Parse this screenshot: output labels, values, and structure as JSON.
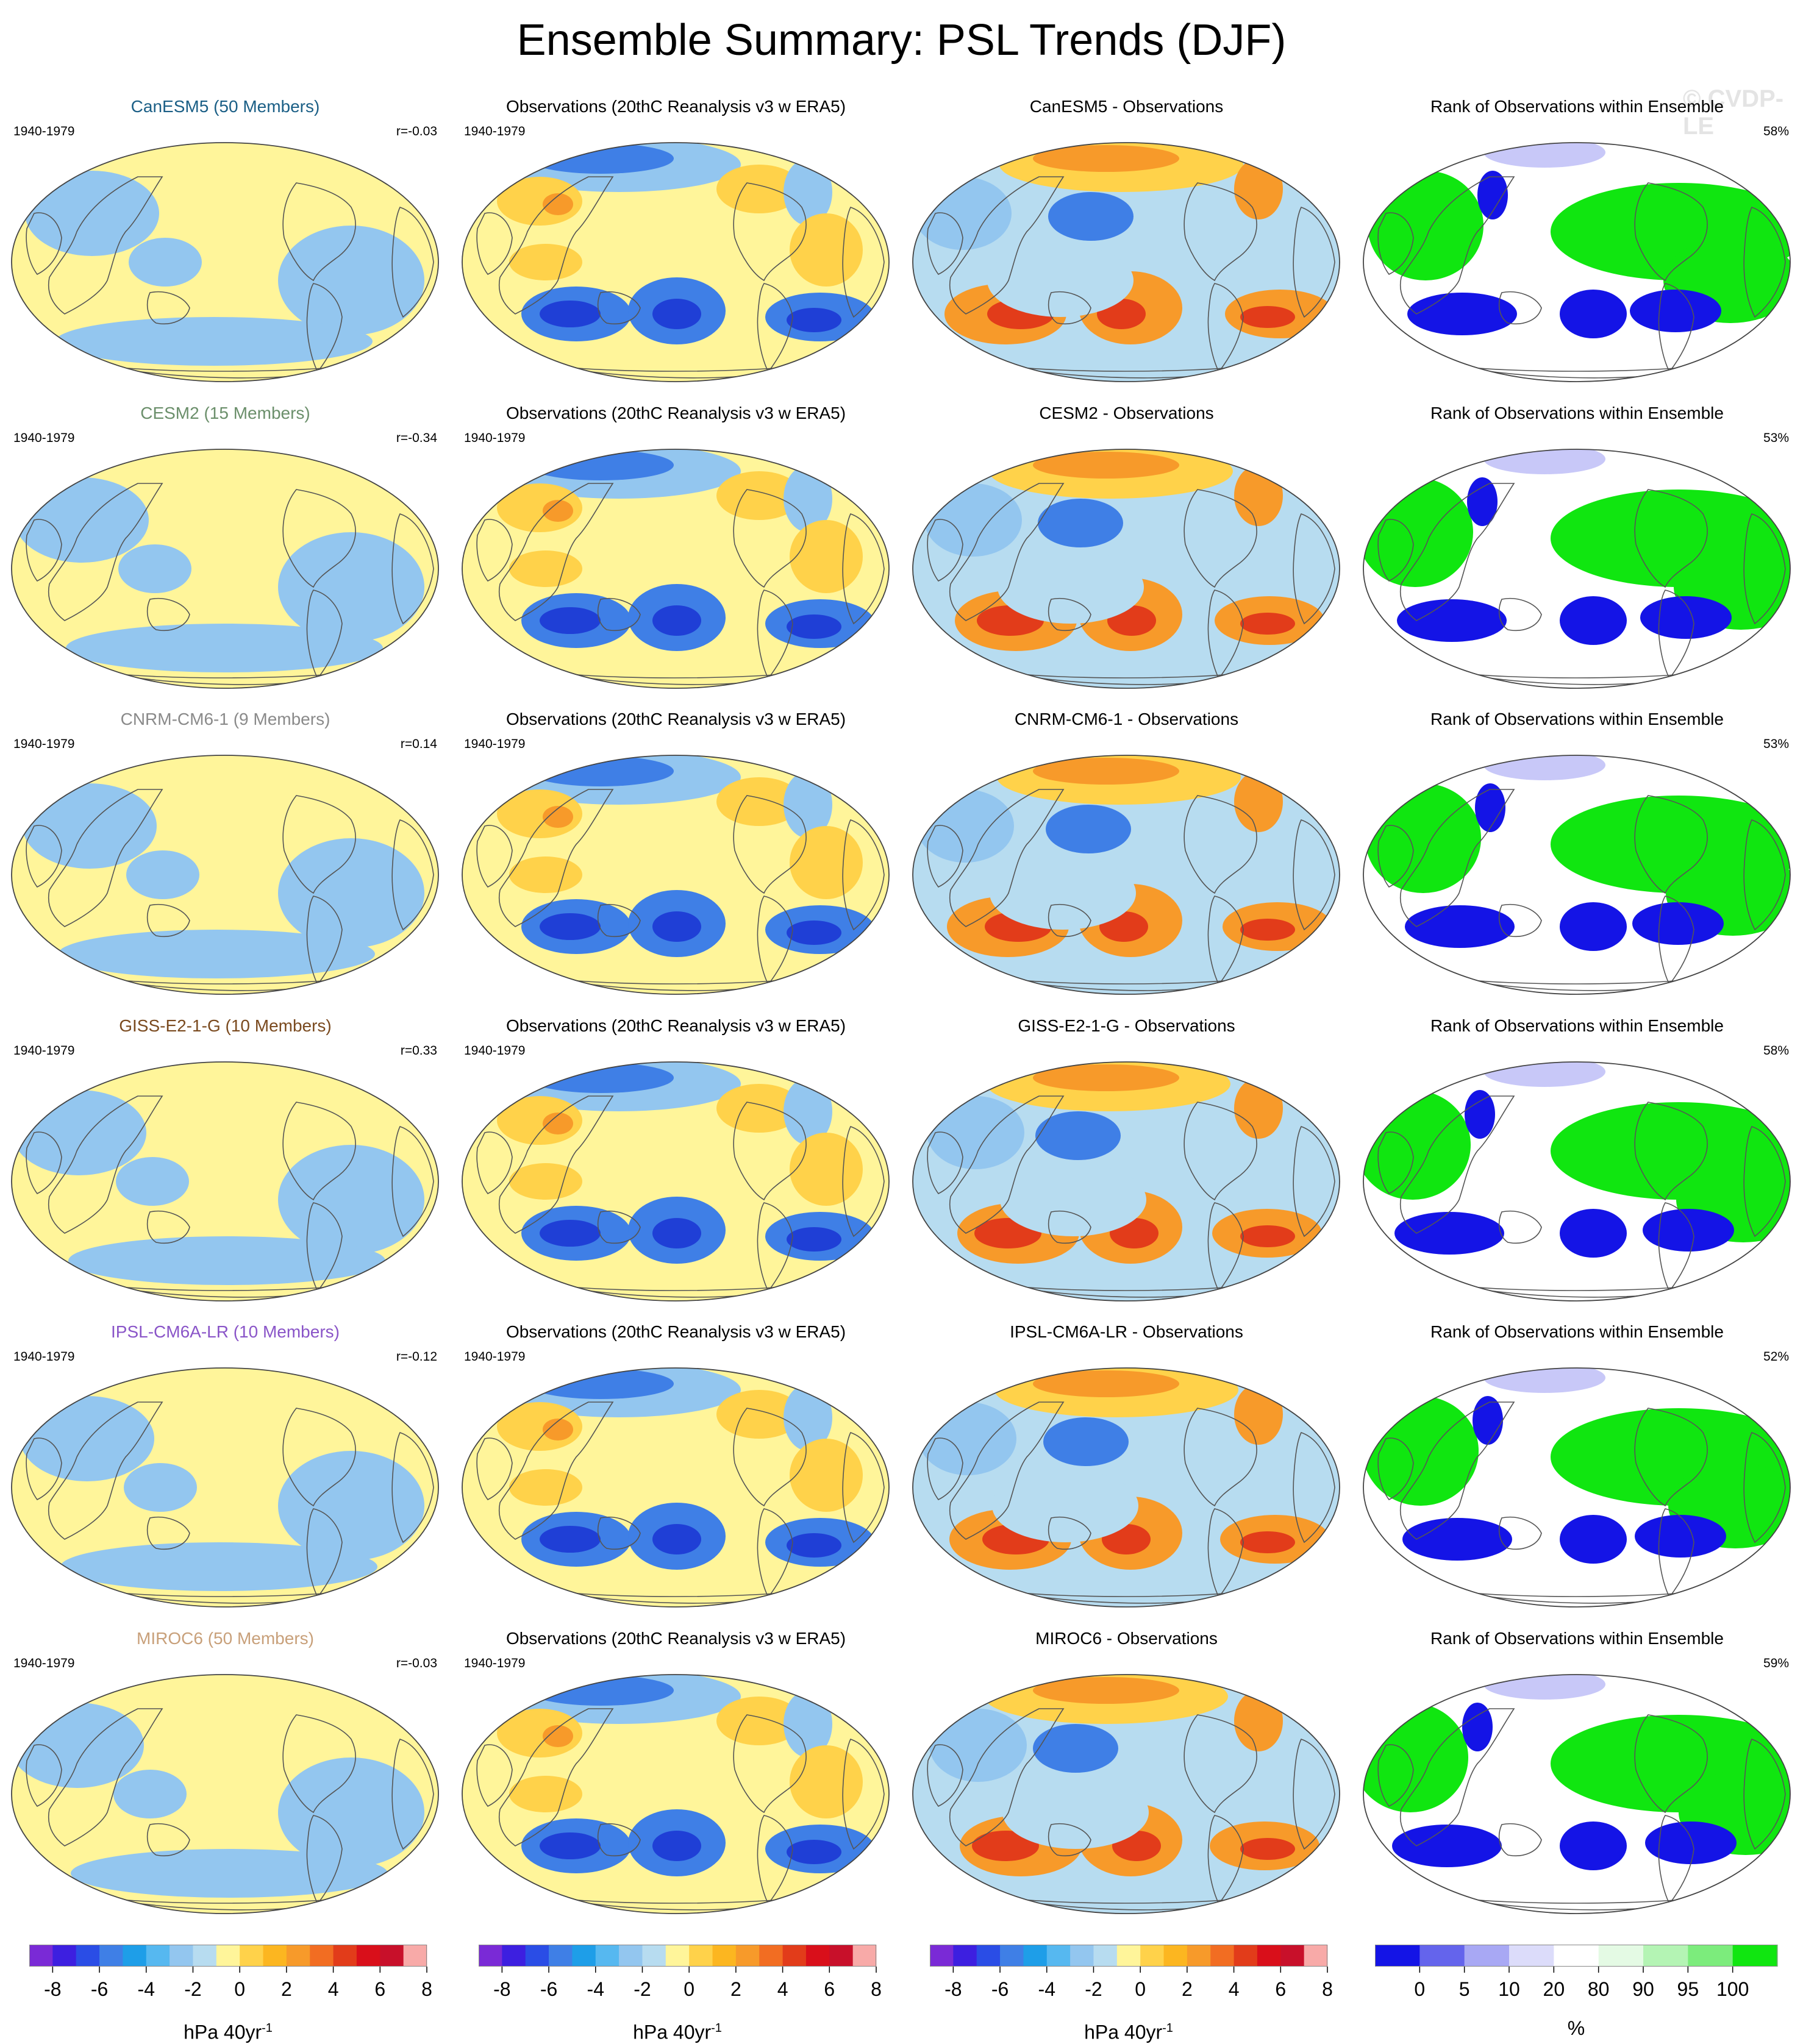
{
  "title": "Ensemble Summary: PSL Trends (DJF)",
  "watermark": "© CVDP-LE",
  "colors": {
    "neg_strong": "#1f3fd6",
    "neg": "#3f7fe6",
    "neg_light": "#93c6ef",
    "neutral_blue": "#b7dcf0",
    "neutral_yellow": "#fff59a",
    "pos_light": "#ffd24a",
    "pos": "#f79a2a",
    "pos_strong": "#e23c1a",
    "rank_low": "#1414e6",
    "rank_mid_low": "#c8c8f8",
    "rank_high": "#10e610",
    "coast": "#555555"
  },
  "rows": [
    {
      "model": {
        "title": "CanESM5 (50 Members)",
        "title_color": "#1b5f86",
        "years": "1940-1979",
        "stat": "r=-0.03"
      },
      "obs": {
        "title": "Observations (20thC Reanalysis v3 w ERA5)",
        "years": "1940-1979"
      },
      "diff": {
        "title": "CanESM5 - Observations"
      },
      "rank": {
        "title": "Rank of Observations within Ensemble",
        "stat": "58%"
      }
    },
    {
      "model": {
        "title": "CESM2 (15 Members)",
        "title_color": "#6b8f6b",
        "years": "1940-1979",
        "stat": "r=-0.34"
      },
      "obs": {
        "title": "Observations (20thC Reanalysis v3 w ERA5)",
        "years": "1940-1979"
      },
      "diff": {
        "title": "CESM2 - Observations"
      },
      "rank": {
        "title": "Rank of Observations within Ensemble",
        "stat": "53%"
      }
    },
    {
      "model": {
        "title": "CNRM-CM6-1 (9 Members)",
        "title_color": "#8a8a8a",
        "years": "1940-1979",
        "stat": "r=0.14"
      },
      "obs": {
        "title": "Observations (20thC Reanalysis v3 w ERA5)",
        "years": "1940-1979"
      },
      "diff": {
        "title": "CNRM-CM6-1 - Observations"
      },
      "rank": {
        "title": "Rank of Observations within Ensemble",
        "stat": "53%"
      }
    },
    {
      "model": {
        "title": "GISS-E2-1-G (10 Members)",
        "title_color": "#7a4a1f",
        "years": "1940-1979",
        "stat": "r=0.33"
      },
      "obs": {
        "title": "Observations (20thC Reanalysis v3 w ERA5)",
        "years": "1940-1979"
      },
      "diff": {
        "title": "GISS-E2-1-G - Observations"
      },
      "rank": {
        "title": "Rank of Observations within Ensemble",
        "stat": "58%"
      }
    },
    {
      "model": {
        "title": "IPSL-CM6A-LR (10 Members)",
        "title_color": "#8a55c8",
        "years": "1940-1979",
        "stat": "r=-0.12"
      },
      "obs": {
        "title": "Observations (20thC Reanalysis v3 w ERA5)",
        "years": "1940-1979"
      },
      "diff": {
        "title": "IPSL-CM6A-LR - Observations"
      },
      "rank": {
        "title": "Rank of Observations within Ensemble",
        "stat": "52%"
      }
    },
    {
      "model": {
        "title": "MIROC6 (50 Members)",
        "title_color": "#c8a07a",
        "years": "1940-1979",
        "stat": "r=-0.03"
      },
      "obs": {
        "title": "Observations (20thC Reanalysis v3 w ERA5)",
        "years": "1940-1979"
      },
      "diff": {
        "title": "MIROC6 - Observations"
      },
      "rank": {
        "title": "Rank of Observations within Ensemble",
        "stat": "59%"
      }
    }
  ],
  "colorbars": [
    {
      "units": "hPa 40yr",
      "units_exponent": "-1",
      "colors": [
        "#7a2ad6",
        "#3d1fe0",
        "#2a4de6",
        "#3f7fe6",
        "#1e9ee8",
        "#56b8f0",
        "#93c6ef",
        "#b7dcf0",
        "#fff59a",
        "#ffd24a",
        "#fcb620",
        "#f79a2a",
        "#f26d22",
        "#e23c1a",
        "#d90f1a",
        "#c8102a",
        "#f8aaa8"
      ],
      "labels": [
        "-8",
        "-6",
        "-4",
        "-2",
        "0",
        "2",
        "4",
        "6",
        "8"
      ]
    },
    {
      "units": "hPa 40yr",
      "units_exponent": "-1",
      "colors": [
        "#7a2ad6",
        "#3d1fe0",
        "#2a4de6",
        "#3f7fe6",
        "#1e9ee8",
        "#56b8f0",
        "#93c6ef",
        "#b7dcf0",
        "#fff59a",
        "#ffd24a",
        "#fcb620",
        "#f79a2a",
        "#f26d22",
        "#e23c1a",
        "#d90f1a",
        "#c8102a",
        "#f8aaa8"
      ],
      "labels": [
        "-8",
        "-6",
        "-4",
        "-2",
        "0",
        "2",
        "4",
        "6",
        "8"
      ]
    },
    {
      "units": "hPa 40yr",
      "units_exponent": "-1",
      "colors": [
        "#7a2ad6",
        "#3d1fe0",
        "#2a4de6",
        "#3f7fe6",
        "#1e9ee8",
        "#56b8f0",
        "#93c6ef",
        "#b7dcf0",
        "#fff59a",
        "#ffd24a",
        "#fcb620",
        "#f79a2a",
        "#f26d22",
        "#e23c1a",
        "#d90f1a",
        "#c8102a",
        "#f8aaa8"
      ],
      "labels": [
        "-8",
        "-6",
        "-4",
        "-2",
        "0",
        "2",
        "4",
        "6",
        "8"
      ]
    },
    {
      "units": "%",
      "units_exponent": "",
      "colors": [
        "#1414e6",
        "#6464ec",
        "#a8a8f4",
        "#dcdcfa",
        "#ffffff",
        "#e4fae4",
        "#b4f4b4",
        "#7cec7c",
        "#10e610"
      ],
      "labels": [
        "0",
        "5",
        "10",
        "20",
        "80",
        "90",
        "95",
        "100"
      ]
    }
  ]
}
